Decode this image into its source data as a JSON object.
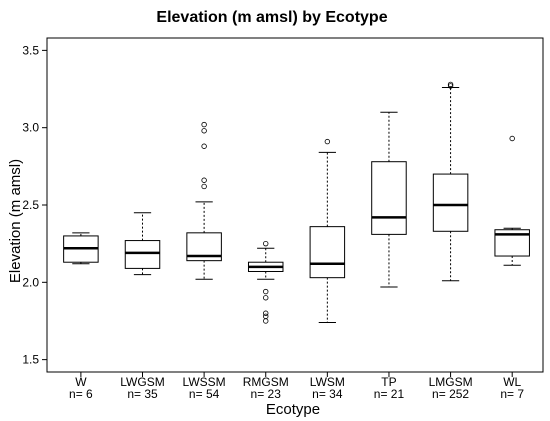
{
  "chart_data": {
    "type": "box",
    "title": "Elevation (m amsl) by Ecotype",
    "xlabel": "Ecotype",
    "ylabel": "Elevation  (m amsl)",
    "ylim": [
      1.42,
      3.58
    ],
    "yticks": [
      "1.5",
      "2.0",
      "2.5",
      "3.0",
      "3.5"
    ],
    "grid": false,
    "categories": [
      "W",
      "LWGSM",
      "LWSSM",
      "RMGSM",
      "LWSM",
      "TP",
      "LMGSM",
      "WL"
    ],
    "counts": [
      "n= 6",
      "n= 35",
      "n= 54",
      "n= 23",
      "n= 34",
      "n= 21",
      "n= 252",
      "n= 7"
    ],
    "series": [
      {
        "name": "W",
        "min": 2.12,
        "q1": 2.13,
        "median": 2.22,
        "q3": 2.3,
        "max": 2.32,
        "outliers": []
      },
      {
        "name": "LWGSM",
        "min": 2.05,
        "q1": 2.09,
        "median": 2.19,
        "q3": 2.27,
        "max": 2.45,
        "outliers": []
      },
      {
        "name": "LWSSM",
        "min": 2.02,
        "q1": 2.14,
        "median": 2.17,
        "q3": 2.32,
        "max": 2.52,
        "outliers": [
          2.62,
          2.66,
          2.88,
          2.98,
          3.02
        ]
      },
      {
        "name": "RMGSM",
        "min": 2.02,
        "q1": 2.07,
        "median": 2.1,
        "q3": 2.13,
        "max": 2.22,
        "outliers": [
          1.75,
          1.78,
          1.8,
          1.9,
          1.94,
          2.25
        ]
      },
      {
        "name": "LWSM",
        "min": 1.74,
        "q1": 2.03,
        "median": 2.12,
        "q3": 2.36,
        "max": 2.84,
        "outliers": [
          2.91
        ]
      },
      {
        "name": "TP",
        "min": 1.97,
        "q1": 2.31,
        "median": 2.42,
        "q3": 2.78,
        "max": 3.1,
        "outliers": []
      },
      {
        "name": "LMGSM",
        "min": 2.01,
        "q1": 2.33,
        "median": 2.5,
        "q3": 2.7,
        "max": 3.26,
        "outliers": [
          3.27,
          3.28
        ]
      },
      {
        "name": "WL",
        "min": 2.11,
        "q1": 2.17,
        "median": 2.31,
        "q3": 2.34,
        "max": 2.35,
        "outliers": [
          2.93
        ]
      }
    ]
  }
}
